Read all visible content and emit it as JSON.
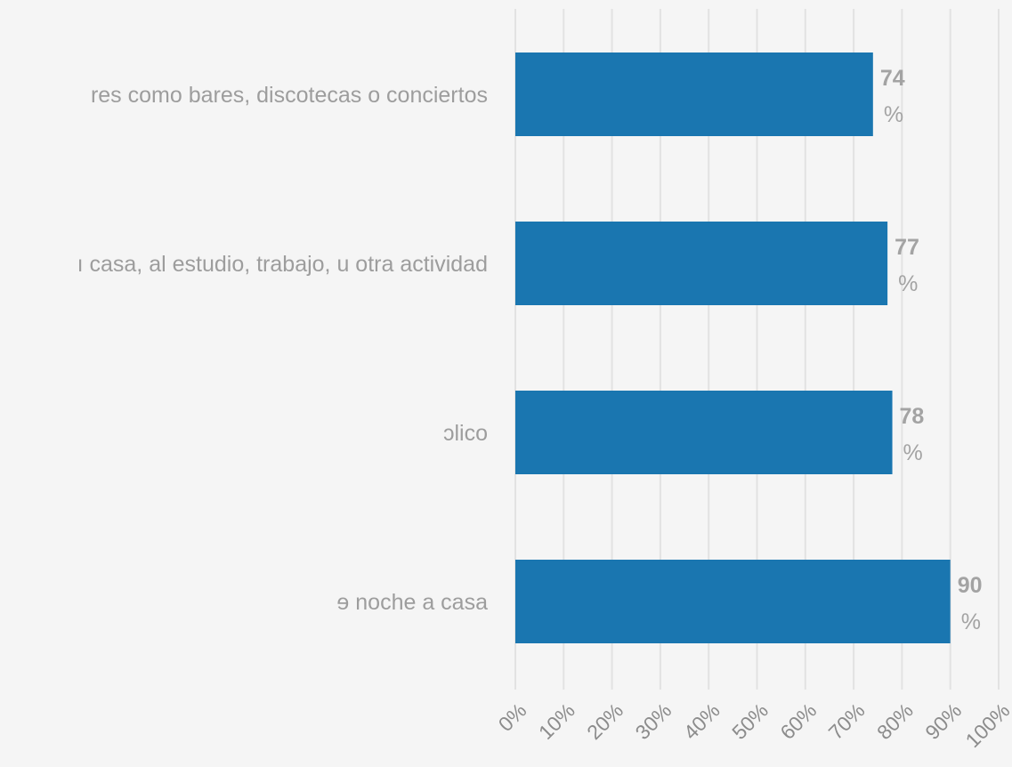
{
  "chart_data": {
    "type": "bar",
    "orientation": "horizontal",
    "categories": [
      "res como bares, discotecas o conciertos",
      "ı casa, al estudio, trabajo, u otra actividad",
      "ɔlico",
      "ɘ noche a casa"
    ],
    "values": [
      74,
      77,
      78,
      90
    ],
    "value_labels": [
      {
        "number": "74",
        "unit": "%"
      },
      {
        "number": "77",
        "unit": "%"
      },
      {
        "number": "78",
        "unit": "%"
      },
      {
        "number": "90",
        "unit": "%"
      }
    ],
    "x_ticks": [
      "0%",
      "10%",
      "20%",
      "30%",
      "40%",
      "50%",
      "60%",
      "70%",
      "80%",
      "90%",
      "100%"
    ],
    "xlim": [
      0,
      100
    ],
    "grid": true,
    "legend": "none",
    "colors": {
      "bar": "#1a76b0",
      "background": "#f5f5f5",
      "grid": "#e2e2e2"
    }
  }
}
